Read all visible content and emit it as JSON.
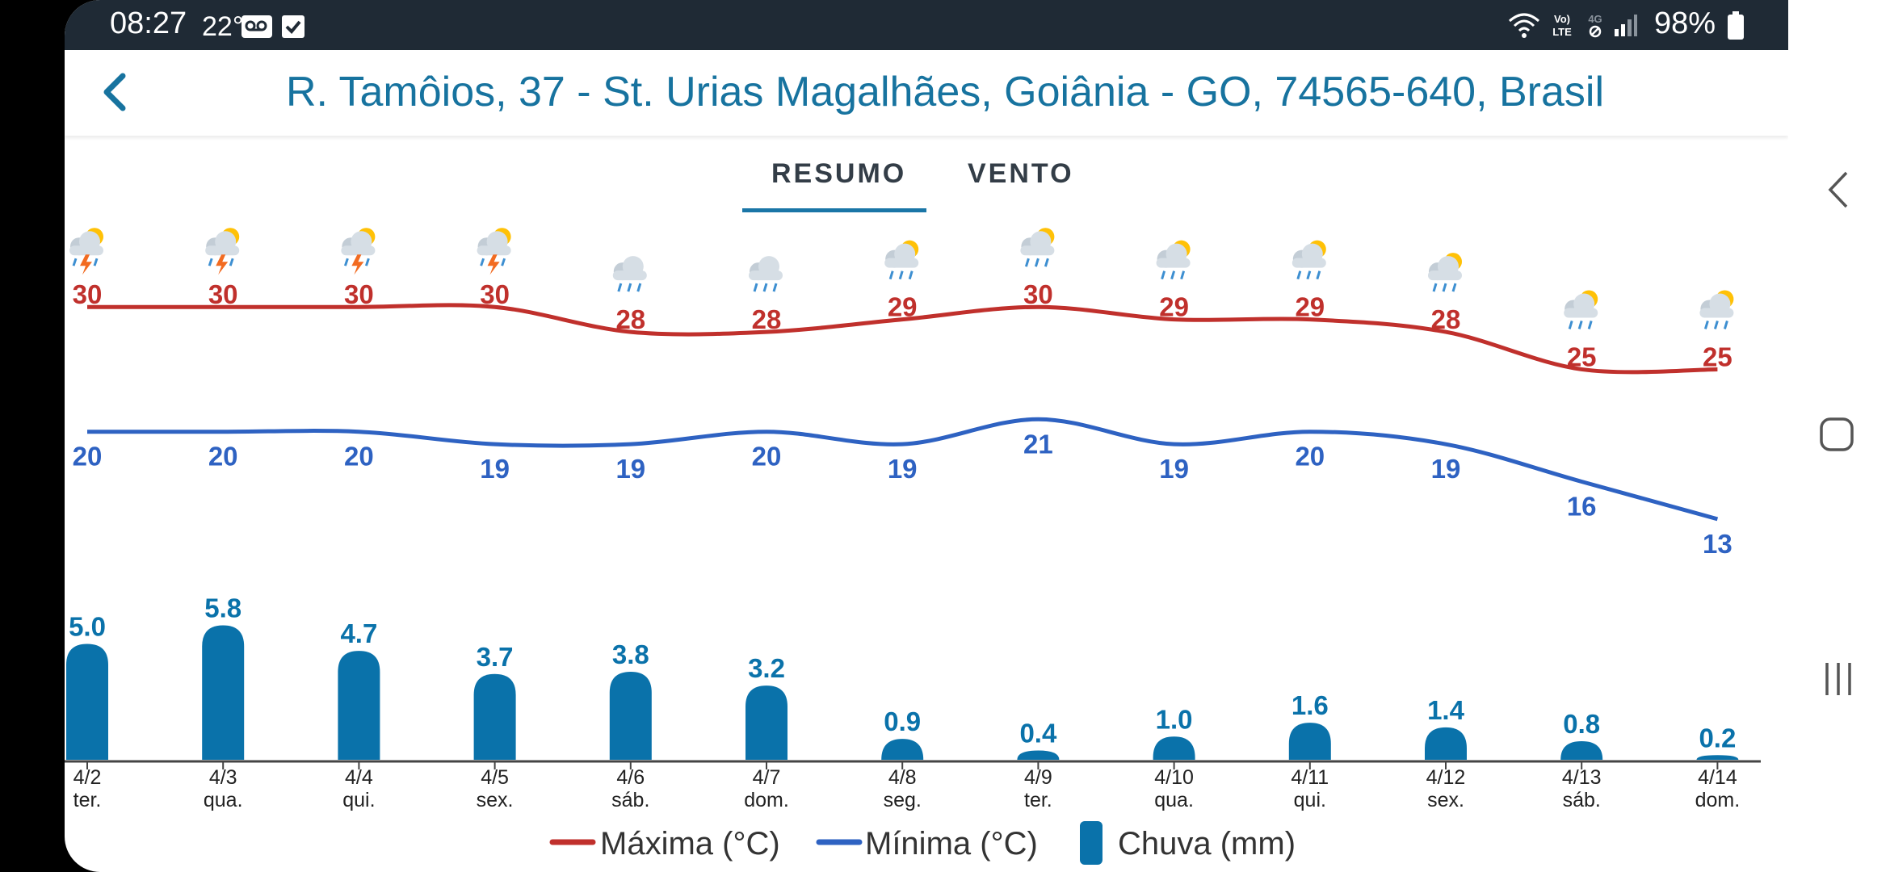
{
  "status_bar": {
    "time": "08:27",
    "temperature": "22°",
    "battery": "98%",
    "icons": [
      "voicemail-icon",
      "check-icon",
      "wifi-icon",
      "volte-icon",
      "4g-icon",
      "signal-icon",
      "battery-icon"
    ]
  },
  "header": {
    "title": "R. Tamôios, 37 - St. Urias Magalhães, Goiânia - GO, 74565-640, Brasil",
    "back_icon": "chevron-left-icon"
  },
  "tabs": [
    {
      "label": "RESUMO",
      "active": true
    },
    {
      "label": "VENTO",
      "active": false
    }
  ],
  "chart_data": {
    "type": "line",
    "x": [
      "4/2",
      "4/3",
      "4/4",
      "4/5",
      "4/6",
      "4/7",
      "4/8",
      "4/9",
      "4/10",
      "4/11",
      "4/12",
      "4/13",
      "4/14"
    ],
    "weekdays": [
      "ter.",
      "qua.",
      "qui.",
      "sex.",
      "sáb.",
      "dom.",
      "seg.",
      "ter.",
      "qua.",
      "qui.",
      "sex.",
      "sáb.",
      "dom."
    ],
    "icons": [
      "thunderstorm-icon",
      "thunderstorm-icon",
      "thunderstorm-icon",
      "thunderstorm-icon",
      "rain-icon",
      "rain-icon",
      "sun-rain-icon",
      "sun-rain-icon",
      "sun-rain-icon",
      "sun-rain-icon",
      "sun-rain-icon",
      "sun-rain-icon",
      "sun-rain-icon"
    ],
    "series": [
      {
        "name": "Máxima (°C)",
        "type": "line",
        "color": "#c0302c",
        "values": [
          30,
          30,
          30,
          30,
          28,
          28,
          29,
          30,
          29,
          29,
          28,
          25,
          25
        ]
      },
      {
        "name": "Mínima (°C)",
        "type": "line",
        "color": "#2e62c2",
        "values": [
          20,
          20,
          20,
          19,
          19,
          20,
          19,
          21,
          19,
          20,
          19,
          16,
          13
        ]
      },
      {
        "name": "Chuva (mm)",
        "type": "bar",
        "color": "#0a72aa",
        "values": [
          "5.0",
          "5.8",
          "4.7",
          "3.7",
          "3.8",
          "3.2",
          "0.9",
          "0.4",
          "1.0",
          "1.6",
          "1.4",
          "0.8",
          "0.2"
        ]
      }
    ],
    "grid": false,
    "legend_position": "bottom"
  },
  "nav_bar": {
    "icons": [
      "back-nav-icon",
      "home-nav-icon",
      "recents-nav-icon"
    ]
  }
}
